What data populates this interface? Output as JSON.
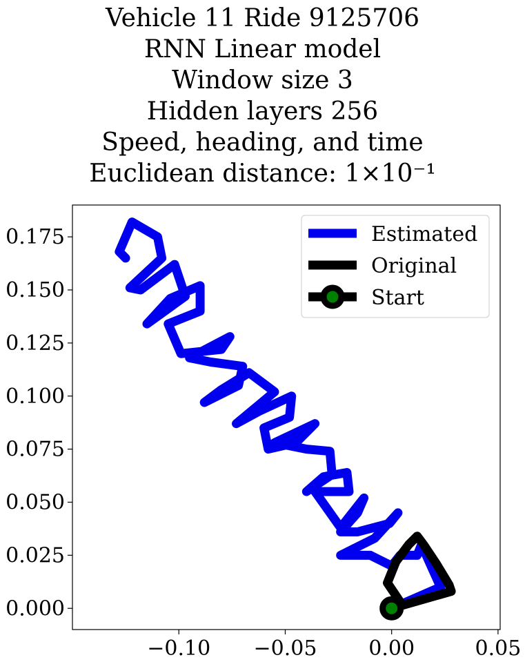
{
  "chart_data": {
    "type": "line",
    "title_lines": [
      "Vehicle 11 Ride 9125706",
      "RNN Linear model",
      "Window size 3",
      "Hidden layers 256",
      "Speed, heading, and time",
      "Euclidean distance: 1×10⁻¹"
    ],
    "xlabel": "",
    "ylabel": "",
    "xlim": [
      -0.15,
      0.051
    ],
    "ylim": [
      -0.01,
      0.19
    ],
    "x_ticks": [
      -0.1,
      -0.05,
      0.0,
      0.05
    ],
    "x_tick_labels": [
      "−0.10",
      "−0.05",
      "0.00",
      "0.05"
    ],
    "y_ticks": [
      0.0,
      0.025,
      0.05,
      0.075,
      0.1,
      0.125,
      0.15,
      0.175
    ],
    "y_tick_labels": [
      "0.000",
      "0.025",
      "0.050",
      "0.075",
      "0.100",
      "0.125",
      "0.150",
      "0.175"
    ],
    "grid": false,
    "legend_position": "top-right",
    "series": [
      {
        "name": "Estimated",
        "color": "#0000ee",
        "x": [
          0.0,
          0.023,
          0.014,
          0.012,
          0.004,
          0.0,
          -0.01,
          -0.024,
          -0.008,
          0.003,
          -0.001,
          -0.016,
          -0.024,
          -0.016,
          -0.013,
          -0.024,
          -0.036,
          -0.02,
          -0.021,
          -0.032,
          -0.04,
          -0.028,
          -0.029,
          -0.04,
          -0.055,
          -0.036,
          -0.045,
          -0.058,
          -0.06,
          -0.048,
          -0.047,
          -0.062,
          -0.073,
          -0.055,
          -0.067,
          -0.08,
          -0.088,
          -0.072,
          -0.07,
          -0.085,
          -0.095,
          -0.076,
          -0.08,
          -0.099,
          -0.105,
          -0.09,
          -0.09,
          -0.104,
          -0.115,
          -0.097,
          -0.102,
          -0.118,
          -0.123,
          -0.108,
          -0.11,
          -0.122,
          -0.128,
          -0.125
        ],
        "y": [
          0.0,
          0.01,
          0.03,
          0.025,
          0.025,
          0.02,
          0.025,
          0.025,
          0.033,
          0.045,
          0.04,
          0.036,
          0.036,
          0.045,
          0.052,
          0.038,
          0.055,
          0.055,
          0.064,
          0.062,
          0.055,
          0.063,
          0.074,
          0.075,
          0.078,
          0.087,
          0.078,
          0.075,
          0.085,
          0.09,
          0.1,
          0.093,
          0.087,
          0.102,
          0.111,
          0.103,
          0.097,
          0.105,
          0.114,
          0.116,
          0.118,
          0.128,
          0.122,
          0.12,
          0.134,
          0.14,
          0.152,
          0.146,
          0.134,
          0.147,
          0.162,
          0.15,
          0.151,
          0.165,
          0.175,
          0.182,
          0.168,
          0.165
        ]
      },
      {
        "name": "Original",
        "color": "#000000",
        "x": [
          0.0,
          0.028,
          0.027,
          0.021,
          0.015,
          0.012,
          0.008,
          0.002,
          -0.002,
          0.002,
          0.004,
          0.0
        ],
        "y": [
          0.0,
          0.008,
          0.011,
          0.021,
          0.03,
          0.034,
          0.03,
          0.022,
          0.012,
          0.006,
          0.003,
          0.0
        ]
      }
    ],
    "start_point": {
      "name": "Start",
      "x": 0.0,
      "y": 0.0,
      "edge_color": "#000000",
      "face_color": "#008000"
    }
  }
}
